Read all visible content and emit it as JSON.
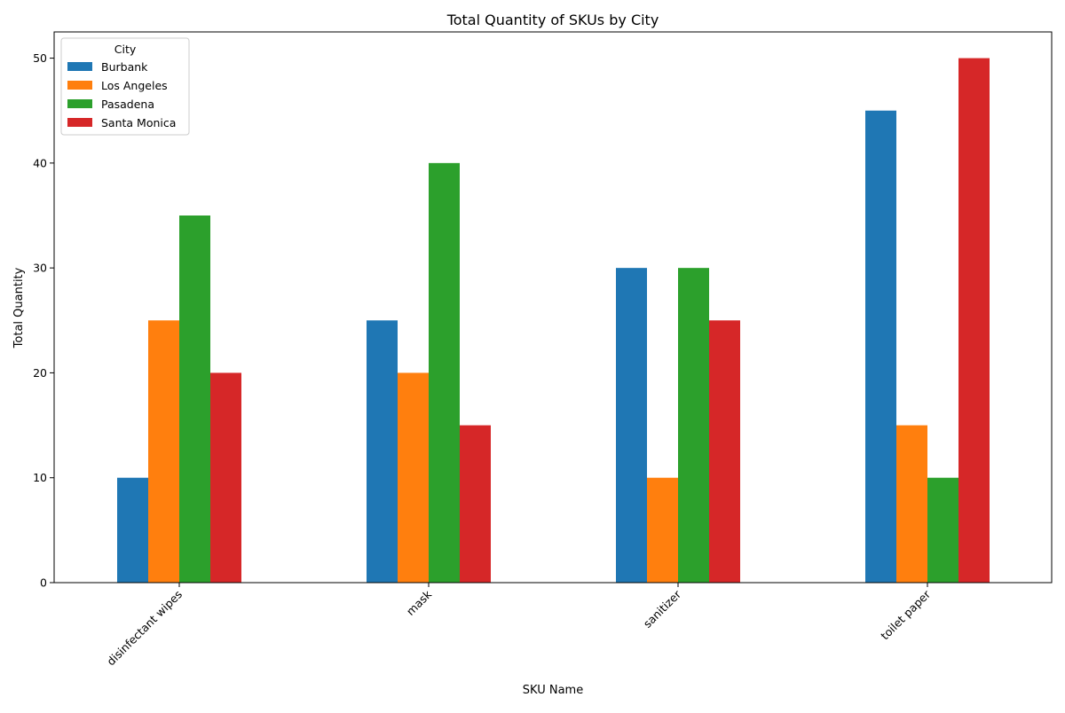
{
  "chart_data": {
    "type": "bar",
    "title": "Total Quantity of SKUs by City",
    "xlabel": "SKU Name",
    "ylabel": "Total Quantity",
    "categories": [
      "disinfectant wipes",
      "mask",
      "sanitizer",
      "toilet paper"
    ],
    "series": [
      {
        "name": "Burbank",
        "color": "#1f77b4",
        "values": [
          10,
          25,
          30,
          45
        ]
      },
      {
        "name": "Los Angeles",
        "color": "#ff7f0e",
        "values": [
          25,
          20,
          10,
          15
        ]
      },
      {
        "name": "Pasadena",
        "color": "#2ca02c",
        "values": [
          35,
          40,
          30,
          10
        ]
      },
      {
        "name": "Santa Monica",
        "color": "#d62728",
        "values": [
          20,
          15,
          25,
          50
        ]
      }
    ],
    "ylim": [
      0,
      52.5
    ],
    "yticks": [
      0,
      10,
      20,
      30,
      40,
      50
    ],
    "grid": false,
    "legend": {
      "title": "City",
      "placement": "top-left"
    },
    "xtick_rotation": "45"
  }
}
